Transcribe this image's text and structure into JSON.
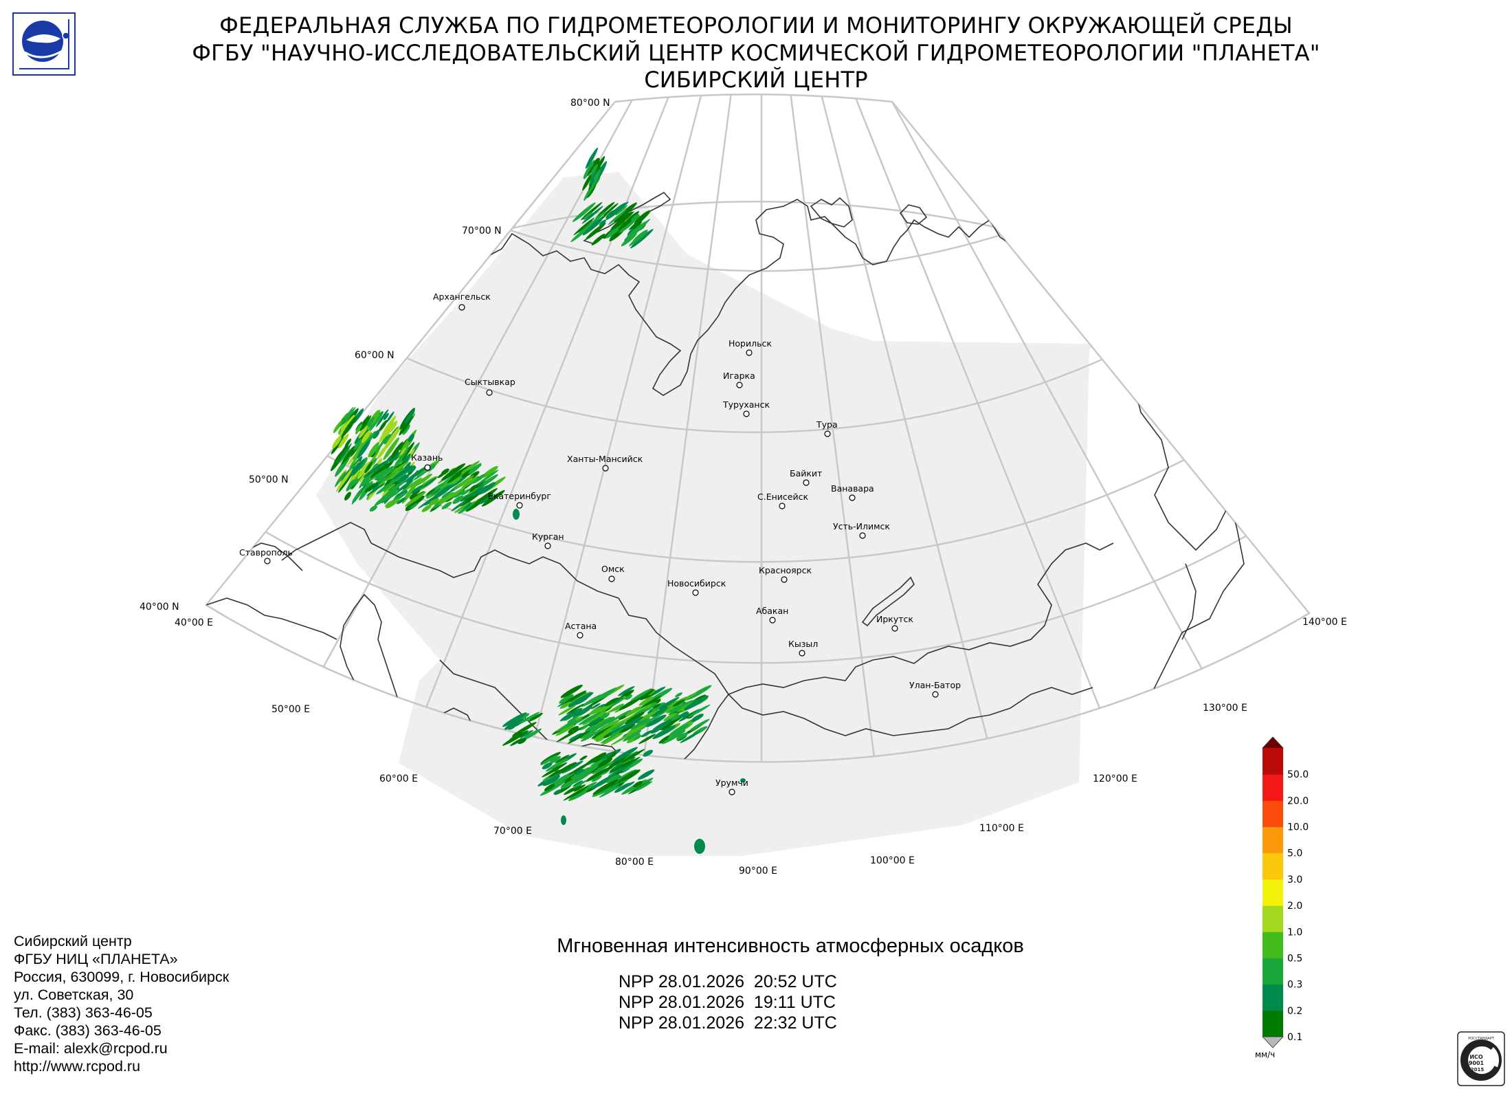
{
  "header": {
    "line1": "ФЕДЕРАЛЬНАЯ СЛУЖБА ПО ГИДРОМЕТЕОРОЛОГИИ И МОНИТОРИНГУ ОКРУЖАЮЩЕЙ СРЕДЫ",
    "line2": "ФГБУ \"НАУЧНО-ИССЛЕДОВАТЕЛЬСКИЙ ЦЕНТР КОСМИЧЕСКОЙ ГИДРОМЕТЕОРОЛОГИИ \"ПЛАНЕТА\"",
    "line3": "СИБИРСКИЙ ЦЕНТР"
  },
  "map": {
    "projection": "conic",
    "background_color": "#ffffff",
    "coverage_color": "#efefef",
    "graticule_color": "#c8c8c8",
    "border_color": "#333333",
    "latitude_labels": [
      "80°00 N",
      "70°00 N",
      "60°00 N",
      "50°00 N",
      "40°00 N"
    ],
    "longitude_labels": [
      "40°00 E",
      "50°00 E",
      "60°00 E",
      "70°00 E",
      "80°00 E",
      "90°00 E",
      "100°00 E",
      "110°00 E",
      "120°00 E",
      "130°00 E",
      "140°00 E"
    ],
    "cities": [
      "Архангельск",
      "Сыктывкар",
      "Казань",
      "Екатеринбург",
      "Ставрополь",
      "Курган",
      "Ханты-Мансийск",
      "Омск",
      "Астана",
      "Новосибирск",
      "Норильск",
      "Игарка",
      "Туруханск",
      "Тура",
      "Байкит",
      "Ванавара",
      "С.Енисейск",
      "Усть-Илимск",
      "Красноярск",
      "Абакан",
      "Кызыл",
      "Иркутск",
      "Улан-Батор",
      "Урумчи"
    ],
    "precipitation_areas": [
      {
        "region": "Kazan–Volga",
        "class_range": [
          "0.1",
          "1.0"
        ],
        "dominant_color": "#1e9e32"
      },
      {
        "region": "Kazakhstan–Xinjiang",
        "class_range": [
          "0.1",
          "0.5"
        ],
        "dominant_color": "#1a8a2a"
      },
      {
        "region": "Novaya Zemlya",
        "class_range": [
          "0.1",
          "0.3"
        ],
        "dominant_color": "#22a03a"
      }
    ]
  },
  "legend": {
    "unit": "мм/ч",
    "classes": [
      {
        "label": "0.1",
        "color": "#007a00"
      },
      {
        "label": "0.2",
        "color": "#008a4c"
      },
      {
        "label": "0.3",
        "color": "#1aa83c"
      },
      {
        "label": "0.5",
        "color": "#44bb1c"
      },
      {
        "label": "1.0",
        "color": "#a4d81e"
      },
      {
        "label": "2.0",
        "color": "#f2f20a"
      },
      {
        "label": "3.0",
        "color": "#fcc80c"
      },
      {
        "label": "5.0",
        "color": "#fc9a0c"
      },
      {
        "label": "10.0",
        "color": "#fc4c0c"
      },
      {
        "label": "20.0",
        "color": "#f21818"
      },
      {
        "label": "50.0",
        "color": "#ba0a0a"
      }
    ],
    "top_arrow_color": "#6e0000",
    "bottom_arrow_color": "#b8b8b8"
  },
  "contacts": [
    "Сибирский центр",
    "ФГБУ НИЦ «ПЛАНЕТА»",
    "Россия, 630099, г. Новосибирск",
    "ул. Советская, 30",
    "Тел. (383) 363-46-05",
    "Факс. (383) 363-46-05",
    "E-mail: alexk@rcpod.ru",
    "http://www.rcpod.ru"
  ],
  "product": {
    "title": "Мгновенная интенсивность атмосферных осадков",
    "passes": [
      "NPP 28.01.2026  20:52 UTC",
      "NPP 28.01.2026  19:11 UTC",
      "NPP 28.01.2026  22:32 UTC"
    ]
  },
  "iso_badge": {
    "lines": [
      "ИСО",
      "9001",
      "-2015"
    ],
    "arc_text": "РОССТАНДАРТ"
  }
}
